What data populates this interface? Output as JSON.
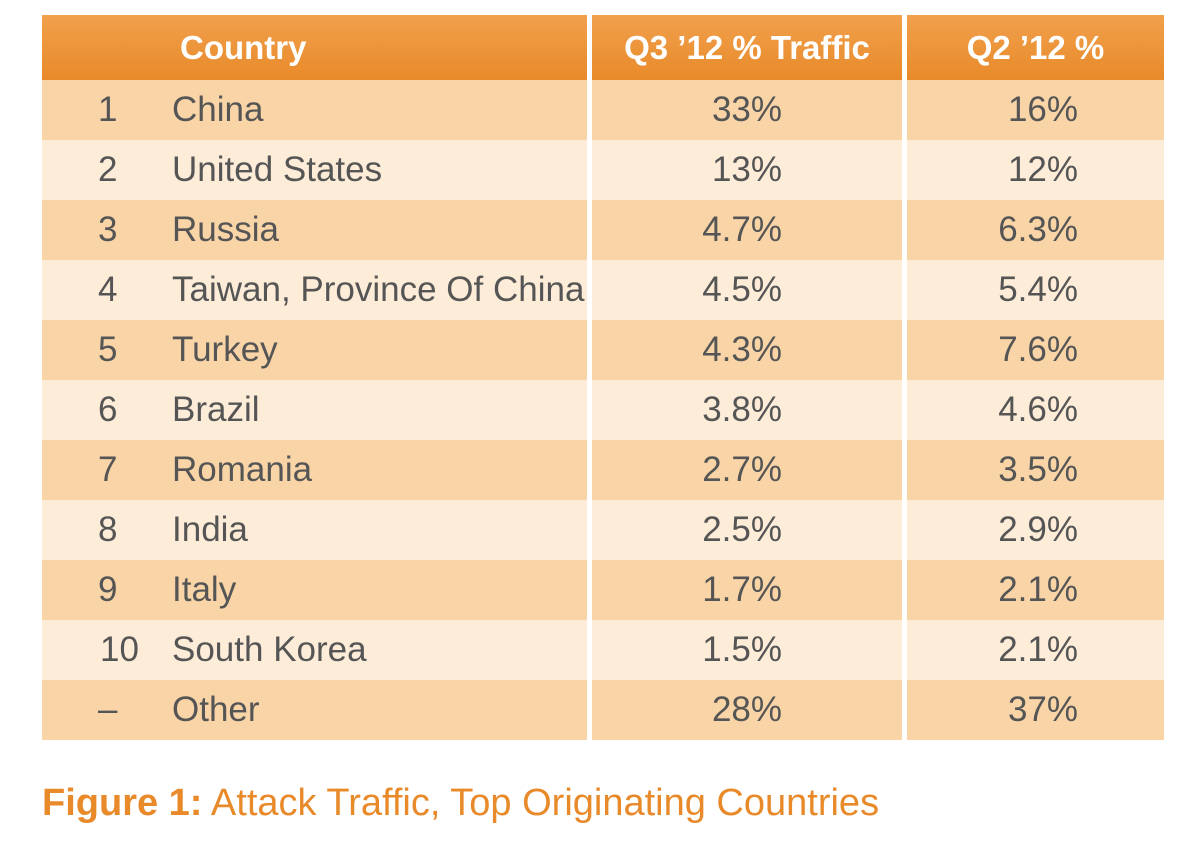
{
  "chart_data": {
    "type": "table",
    "columns": [
      "",
      "Country",
      "Q3 ’12 % Traffic",
      "Q2 ’12 %"
    ],
    "rows": [
      {
        "rank": "1",
        "country": "China",
        "q3": "33%",
        "q2": "16%"
      },
      {
        "rank": "2",
        "country": "United States",
        "q3": "13%",
        "q2": "12%"
      },
      {
        "rank": "3",
        "country": "Russia",
        "q3": "4.7%",
        "q2": "6.3%"
      },
      {
        "rank": "4",
        "country": "Taiwan, Province Of China",
        "q3": "4.5%",
        "q2": "5.4%"
      },
      {
        "rank": "5",
        "country": "Turkey",
        "q3": "4.3%",
        "q2": "7.6%"
      },
      {
        "rank": "6",
        "country": "Brazil",
        "q3": "3.8%",
        "q2": "4.6%"
      },
      {
        "rank": "7",
        "country": "Romania",
        "q3": "2.7%",
        "q2": "3.5%"
      },
      {
        "rank": "8",
        "country": "India",
        "q3": "2.5%",
        "q2": "2.9%"
      },
      {
        "rank": "9",
        "country": "Italy",
        "q3": "1.7%",
        "q2": "2.1%"
      },
      {
        "rank": "10",
        "country": "South Korea",
        "q3": "1.5%",
        "q2": "2.1%"
      },
      {
        "rank": "–",
        "country": "Other",
        "q3": "28%",
        "q2": "37%"
      }
    ]
  },
  "caption": {
    "lead": "Figure 1:",
    "text": " Attack Traffic, Top Originating Countries"
  },
  "colors": {
    "header": "#e88a2a",
    "row_dark": "#f8d4a6",
    "row_light": "#fdecd8",
    "caption": "#e88a2a"
  }
}
